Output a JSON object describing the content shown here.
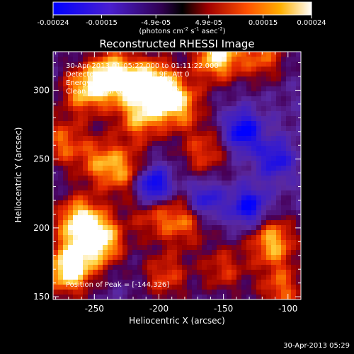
{
  "colorbar": {
    "tick_labels": [
      "-0.00024",
      "-0.00015",
      "-4.9e-05",
      "4.9e-05",
      "0.00015",
      "0.00024"
    ],
    "tick_values": [
      -0.00024,
      -0.00015,
      -4.9e-05,
      4.9e-05,
      0.00015,
      0.00024
    ],
    "range": [
      -0.00024,
      0.00024
    ],
    "unit_parts": {
      "open": "(photons cm",
      "exp1": "-2",
      "s": " s",
      "exp2": "-1",
      "asec": " asec",
      "exp3": "-2",
      "close": ")"
    }
  },
  "chart_data": {
    "type": "heatmap",
    "title": "Reconstructed RHESSI Image",
    "xlabel": "Heliocentric X (arcsec)",
    "ylabel": "Heliocentric Y (arcsec)",
    "xlim": [
      -282,
      -90
    ],
    "ylim": [
      148,
      328
    ],
    "x_ticks": [
      -250,
      -200,
      -150,
      -100
    ],
    "x_tick_labels": [
      "-250",
      "-200",
      "-150",
      "-100"
    ],
    "y_ticks": [
      150,
      200,
      250,
      300
    ],
    "y_tick_labels": [
      "150",
      "200",
      "250",
      "300"
    ],
    "colorscale": [
      "#0000ff",
      "#5a2cb0",
      "#000000",
      "#c80000",
      "#ff8800",
      "#ffffff"
    ],
    "header_lines": [
      "30-Apr-2013 01:05:22.000 to 01:11:22.000",
      "Detectors: 3F 5F 6F 7F 8F 9F, Att 0",
      "Energy Range: 12.0 - 25.0 keV",
      "Clean     Total counts: 8.32E+03"
    ],
    "peak_label": "Position of Peak = [-144,326]",
    "peak_position": [
      -144,
      326
    ],
    "bright_regions": [
      {
        "x": -235,
        "y": 310,
        "intensity": 0.95
      },
      {
        "x": -205,
        "y": 305,
        "intensity": 0.9
      },
      {
        "x": -185,
        "y": 290,
        "intensity": 0.75
      },
      {
        "x": -215,
        "y": 280,
        "intensity": 0.65
      },
      {
        "x": -258,
        "y": 300,
        "intensity": 0.7
      },
      {
        "x": -275,
        "y": 262,
        "intensity": 0.55
      },
      {
        "x": -262,
        "y": 205,
        "intensity": 0.85
      },
      {
        "x": -270,
        "y": 170,
        "intensity": 1.0
      },
      {
        "x": -245,
        "y": 190,
        "intensity": 0.85
      },
      {
        "x": -245,
        "y": 248,
        "intensity": 0.55
      },
      {
        "x": -225,
        "y": 240,
        "intensity": 0.5
      },
      {
        "x": -165,
        "y": 255,
        "intensity": 0.5
      },
      {
        "x": -155,
        "y": 325,
        "intensity": 0.9
      },
      {
        "x": -180,
        "y": 205,
        "intensity": 0.55
      },
      {
        "x": -205,
        "y": 210,
        "intensity": 0.45
      },
      {
        "x": -120,
        "y": 325,
        "intensity": 0.55
      },
      {
        "x": -112,
        "y": 190,
        "intensity": 0.75
      },
      {
        "x": -105,
        "y": 155,
        "intensity": 0.55
      },
      {
        "x": -195,
        "y": 165,
        "intensity": 0.5
      },
      {
        "x": -150,
        "y": 170,
        "intensity": 0.45
      }
    ],
    "dark_regions": [
      {
        "x": -205,
        "y": 230,
        "intensity": 0.95
      },
      {
        "x": -135,
        "y": 270,
        "intensity": 0.75
      },
      {
        "x": -165,
        "y": 220,
        "intensity": 0.6
      },
      {
        "x": -110,
        "y": 250,
        "intensity": 0.55
      },
      {
        "x": -130,
        "y": 215,
        "intensity": 0.7
      }
    ]
  },
  "timestamp": "30-Apr-2013 05:29"
}
